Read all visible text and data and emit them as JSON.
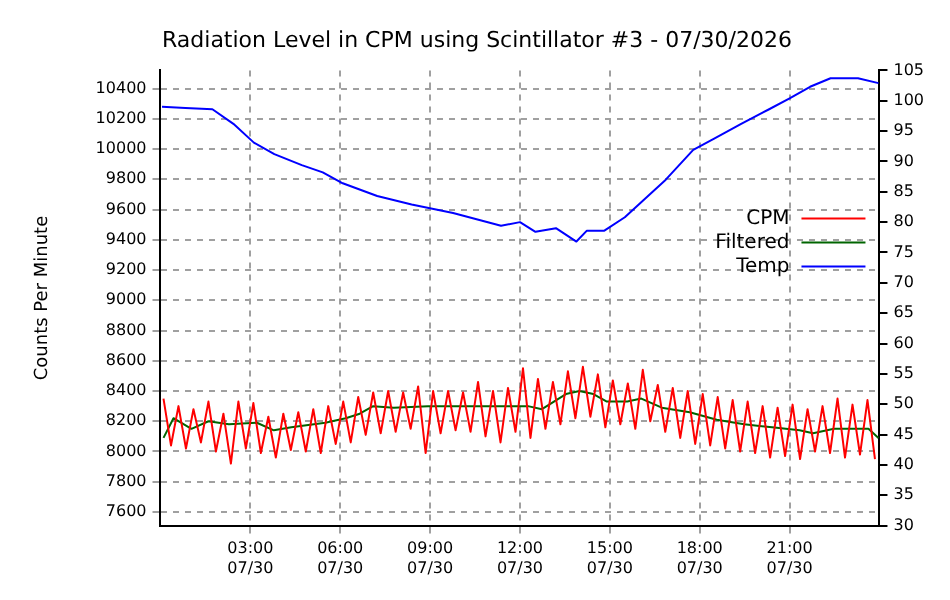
{
  "chart_data": {
    "type": "line",
    "title": "Radiation Level in CPM using Scintillator #3 - 07/30/2026",
    "ylabel": "Counts Per Minute",
    "xlim": [
      "2026-07-30T00:00",
      "2026-07-31T00:00"
    ],
    "xticks": [
      {
        "value": "2026-07-30T03:00",
        "label": "03:00 07/30"
      },
      {
        "value": "2026-07-30T06:00",
        "label": "06:00 07/30"
      },
      {
        "value": "2026-07-30T09:00",
        "label": "09:00 07/30"
      },
      {
        "value": "2026-07-30T12:00",
        "label": "12:00 07/30"
      },
      {
        "value": "2026-07-30T15:00",
        "label": "15:00 07/30"
      },
      {
        "value": "2026-07-30T18:00",
        "label": "18:00 07/30"
      },
      {
        "value": "2026-07-30T21:00",
        "label": "21:00 07/30"
      }
    ],
    "ylim": [
      7510,
      10520
    ],
    "yticks": [
      7600,
      7800,
      8000,
      8200,
      8400,
      8600,
      8800,
      9000,
      9200,
      9400,
      9600,
      9800,
      10000,
      10200,
      10400
    ],
    "y2lim": [
      30,
      105
    ],
    "y2ticks": [
      30,
      35,
      40,
      45,
      50,
      55,
      60,
      65,
      70,
      75,
      80,
      85,
      90,
      95,
      100,
      105
    ],
    "grid": true,
    "legend": "top right",
    "marker": "none",
    "line_style": "solid",
    "series": [
      {
        "name": "CPM",
        "color": "#ff0000",
        "x": [
          "2026-07-30T00:06",
          "2026-07-30T00:21",
          "2026-07-30T00:36",
          "2026-07-30T00:51",
          "2026-07-30T01:06",
          "2026-07-30T01:21",
          "2026-07-30T01:36",
          "2026-07-30T01:51",
          "2026-07-30T02:06",
          "2026-07-30T02:21",
          "2026-07-30T02:36",
          "2026-07-30T02:51",
          "2026-07-30T03:06",
          "2026-07-30T03:21",
          "2026-07-30T03:36",
          "2026-07-30T03:51",
          "2026-07-30T04:06",
          "2026-07-30T04:21",
          "2026-07-30T04:36",
          "2026-07-30T04:51",
          "2026-07-30T05:06",
          "2026-07-30T05:21",
          "2026-07-30T05:36",
          "2026-07-30T05:51",
          "2026-07-30T06:06",
          "2026-07-30T06:21",
          "2026-07-30T06:36",
          "2026-07-30T06:51",
          "2026-07-30T07:06",
          "2026-07-30T07:21",
          "2026-07-30T07:36",
          "2026-07-30T07:51",
          "2026-07-30T08:06",
          "2026-07-30T08:21",
          "2026-07-30T08:36",
          "2026-07-30T08:51",
          "2026-07-30T09:06",
          "2026-07-30T09:21",
          "2026-07-30T09:36",
          "2026-07-30T09:51",
          "2026-07-30T10:06",
          "2026-07-30T10:21",
          "2026-07-30T10:36",
          "2026-07-30T10:51",
          "2026-07-30T11:06",
          "2026-07-30T11:21",
          "2026-07-30T11:36",
          "2026-07-30T11:51",
          "2026-07-30T12:06",
          "2026-07-30T12:21",
          "2026-07-30T12:36",
          "2026-07-30T12:51",
          "2026-07-30T13:06",
          "2026-07-30T13:21",
          "2026-07-30T13:36",
          "2026-07-30T13:51",
          "2026-07-30T14:06",
          "2026-07-30T14:21",
          "2026-07-30T14:36",
          "2026-07-30T14:51",
          "2026-07-30T15:06",
          "2026-07-30T15:21",
          "2026-07-30T15:36",
          "2026-07-30T15:51",
          "2026-07-30T16:06",
          "2026-07-30T16:21",
          "2026-07-30T16:36",
          "2026-07-30T16:51",
          "2026-07-30T17:06",
          "2026-07-30T17:21",
          "2026-07-30T17:36",
          "2026-07-30T17:51",
          "2026-07-30T18:06",
          "2026-07-30T18:21",
          "2026-07-30T18:36",
          "2026-07-30T18:51",
          "2026-07-30T19:06",
          "2026-07-30T19:21",
          "2026-07-30T19:36",
          "2026-07-30T19:51",
          "2026-07-30T20:06",
          "2026-07-30T20:21",
          "2026-07-30T20:36",
          "2026-07-30T20:51",
          "2026-07-30T21:06",
          "2026-07-30T21:21",
          "2026-07-30T21:36",
          "2026-07-30T21:51",
          "2026-07-30T22:06",
          "2026-07-30T22:21",
          "2026-07-30T22:36",
          "2026-07-30T22:51",
          "2026-07-30T23:06",
          "2026-07-30T23:21",
          "2026-07-30T23:36",
          "2026-07-30T23:51"
        ],
        "values": [
          8350,
          8040,
          8300,
          8020,
          8280,
          8060,
          8330,
          8000,
          8250,
          7920,
          8330,
          8020,
          8320,
          7990,
          8230,
          7960,
          8250,
          8010,
          8260,
          8000,
          8280,
          7990,
          8300,
          8050,
          8330,
          8060,
          8360,
          8110,
          8390,
          8120,
          8400,
          8130,
          8390,
          8150,
          8430,
          7990,
          8400,
          8120,
          8400,
          8140,
          8390,
          8130,
          8460,
          8100,
          8400,
          8060,
          8420,
          8130,
          8550,
          8090,
          8480,
          8150,
          8460,
          8180,
          8530,
          8220,
          8560,
          8230,
          8510,
          8160,
          8470,
          8180,
          8450,
          8150,
          8540,
          8200,
          8440,
          8130,
          8420,
          8090,
          8400,
          8050,
          8380,
          8040,
          8360,
          8020,
          8340,
          8000,
          8330,
          7990,
          8300,
          7960,
          8290,
          7970,
          8310,
          7950,
          8280,
          8000,
          8300,
          7990,
          8350,
          7960,
          8310,
          7980,
          8340,
          7950
        ]
      },
      {
        "name": "Filtered",
        "color": "#006400",
        "x": [
          "2026-07-30T00:06",
          "2026-07-30T00:26",
          "2026-07-30T01:02",
          "2026-07-30T01:36",
          "2026-07-30T02:17",
          "2026-07-30T03:13",
          "2026-07-30T03:47",
          "2026-07-30T04:22",
          "2026-07-30T05:30",
          "2026-07-30T06:11",
          "2026-07-30T06:39",
          "2026-07-30T07:06",
          "2026-07-30T07:47",
          "2026-07-30T08:56",
          "2026-07-30T10:05",
          "2026-07-30T12:16",
          "2026-07-30T12:44",
          "2026-07-30T13:32",
          "2026-07-30T13:59",
          "2026-07-30T14:27",
          "2026-07-30T14:54",
          "2026-07-30T15:35",
          "2026-07-30T16:03",
          "2026-07-30T16:44",
          "2026-07-30T17:40",
          "2026-07-30T18:34",
          "2026-07-30T19:29",
          "2026-07-30T20:25",
          "2026-07-30T21:20",
          "2026-07-30T21:47",
          "2026-07-30T22:29",
          "2026-07-30T23:38",
          "2026-07-30T23:58"
        ],
        "values": [
          8090,
          8220,
          8150,
          8200,
          8180,
          8190,
          8140,
          8160,
          8190,
          8220,
          8250,
          8300,
          8290,
          8300,
          8300,
          8300,
          8280,
          8380,
          8400,
          8380,
          8330,
          8330,
          8350,
          8290,
          8260,
          8210,
          8180,
          8160,
          8140,
          8120,
          8150,
          8150,
          8090
        ]
      },
      {
        "name": "Temp",
        "color": "#0000ff",
        "axis": "y2",
        "x": [
          "2026-07-30T00:03",
          "2026-07-30T00:50",
          "2026-07-30T01:44",
          "2026-07-30T02:26",
          "2026-07-30T03:07",
          "2026-07-30T03:48",
          "2026-07-30T04:43",
          "2026-07-30T05:25",
          "2026-07-30T06:05",
          "2026-07-30T07:14",
          "2026-07-30T08:23",
          "2026-07-30T09:46",
          "2026-07-30T11:22",
          "2026-07-30T12:00",
          "2026-07-30T12:31",
          "2026-07-30T13:12",
          "2026-07-30T13:53",
          "2026-07-30T14:14",
          "2026-07-30T14:49",
          "2026-07-30T15:30",
          "2026-07-30T16:11",
          "2026-07-30T16:52",
          "2026-07-30T17:47",
          "2026-07-30T18:28",
          "2026-07-30T19:23",
          "2026-07-30T20:19",
          "2026-07-30T21:00",
          "2026-07-30T21:41",
          "2026-07-30T22:22",
          "2026-07-30T23:17",
          "2026-07-30T23:58"
        ],
        "values": [
          99.0,
          98.8,
          98.6,
          96.2,
          93.1,
          91.2,
          89.4,
          88.2,
          86.4,
          84.3,
          82.9,
          81.5,
          79.4,
          80.0,
          78.4,
          79.0,
          76.8,
          78.6,
          78.6,
          80.8,
          83.9,
          87.0,
          91.9,
          93.7,
          96.2,
          98.6,
          100.4,
          102.3,
          103.7,
          103.7,
          102.9
        ]
      }
    ]
  }
}
